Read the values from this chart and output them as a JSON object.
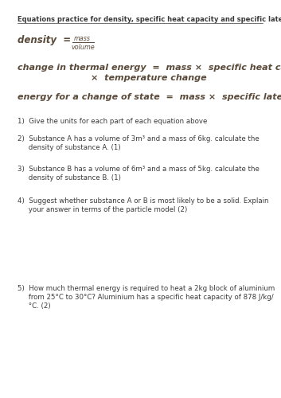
{
  "bg_color": "#ffffff",
  "title": "Equations practice for density, specific heat capacity and specific latent heat",
  "title_fontsize": 6.0,
  "eq_label_fontsize": 8.5,
  "eq_small_fontsize": 5.8,
  "eq2_fontsize": 8.0,
  "eq3_fontsize": 8.0,
  "q_fontsize": 6.2,
  "text_color": "#3a3a3a",
  "eq_color": "#5a4a3a",
  "eq2_line1": "change in thermal energy  =  mass ×  specific heat capacity",
  "eq2_line2": "×  temperature change",
  "eq3": "energy for a change of state  =  mass ×  specific latent heat",
  "q1": "1)  Give the units for each part of each equation above",
  "q2_line1": "2)  Substance A has a volume of 3m³ and a mass of 6kg. calculate the",
  "q2_line2": "     density of substance A. (1)",
  "q3_line1": "3)  Substance B has a volume of 6m³ and a mass of 5kg. calculate the",
  "q3_line2": "     density of substance B. (1)",
  "q4_line1": "4)  Suggest whether substance A or B is most likely to be a solid. Explain",
  "q4_line2": "     your answer in terms of the particle model (2)",
  "q5_line1": "5)  How much thermal energy is required to heat a 2kg block of aluminium",
  "q5_line2": "     from 25°C to 30°C? Aluminium has a specific heat capacity of 878 J/kg/",
  "q5_line3": "     °C. (2)"
}
